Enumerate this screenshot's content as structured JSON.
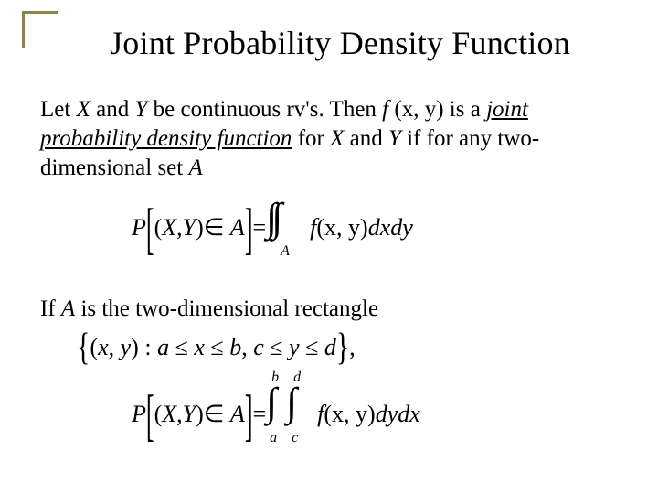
{
  "title": "Joint Probability Density Function",
  "corner_color": "#8a864a",
  "para1": {
    "pre": "Let ",
    "X": "X",
    "and1": " and ",
    "Y": "Y",
    "mid1": " be continuous rv's.  Then ",
    "f": "f ",
    "args": "(x, y)",
    "mid2": " is a ",
    "jpdf": "joint probability density function",
    "for": " for ",
    "X2": "X",
    "and2": " and ",
    "Y2": "Y",
    "tail": " if for any two-dimensional set ",
    "A": "A"
  },
  "eq1": {
    "P": "P",
    "lb": "[",
    "lp": "(",
    "X": "X",
    "comma": ",",
    "Y": "Y",
    "rp": ")",
    "in": "∈",
    "A": "A",
    "rb": "]",
    "eq": "=",
    "ints": "∫∫",
    "subA": "A",
    "f": "f",
    "fargs": "(x, y)",
    "d": "dxdy"
  },
  "para2": {
    "pre": "If ",
    "A": "A",
    "tail": " is the two-dimensional rectangle"
  },
  "set": {
    "open": "{",
    "lp": "(",
    "x": "x",
    "comma": ", ",
    "y": "y",
    "rp": ")",
    "colon": " : ",
    "a": "a",
    "le1": " ≤ ",
    "x2": "x",
    "le2": " ≤ ",
    "b": "b",
    "comma2": ", ",
    "c": "c",
    "le3": " ≤ ",
    "y2": "y",
    "le4": " ≤ ",
    "d": "d",
    "close": "}",
    "tcomma": ","
  },
  "eq2": {
    "P": "P",
    "lb": "[",
    "lp": "(",
    "X": "X",
    "comma": ",",
    "Y": "Y",
    "rp": ")",
    "in": "∈",
    "A": "A",
    "rb": "]",
    "eq": "=",
    "int": "∫",
    "lo1": "a",
    "hi1": "b",
    "lo2": "c",
    "hi2": "d",
    "f": "f",
    "fargs": "(x, y)",
    "d": "dydx"
  }
}
